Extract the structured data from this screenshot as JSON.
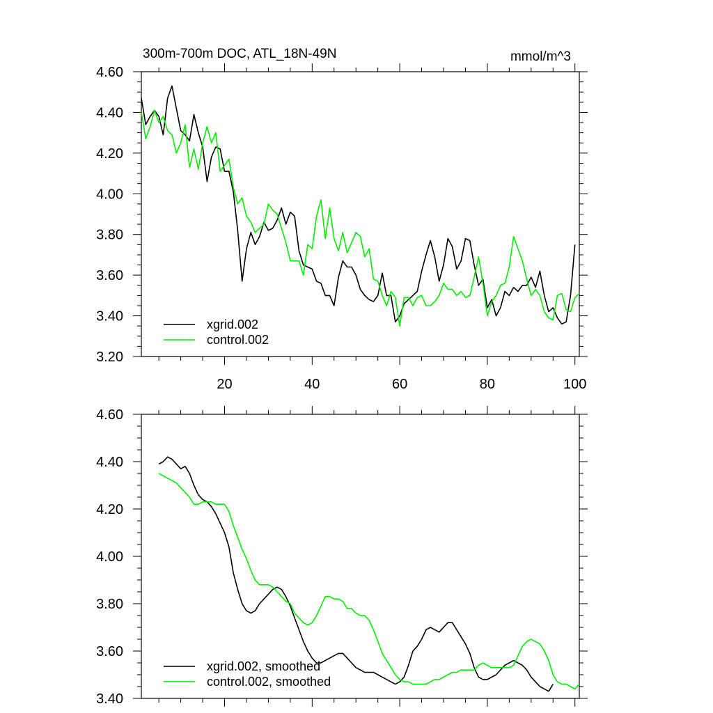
{
  "chart_data": [
    {
      "type": "line",
      "title": "300m-700m DOC, ATL_18N-49N",
      "units": "mmol/m^3",
      "xlim": [
        1,
        101
      ],
      "ylim": [
        3.2,
        4.6
      ],
      "xticks": [
        20,
        40,
        60,
        80,
        100
      ],
      "xtick_labels": [
        "20",
        "40",
        "60",
        "80",
        "100"
      ],
      "yticks": [
        3.2,
        3.4,
        3.6,
        3.8,
        4.0,
        4.2,
        4.4,
        4.6
      ],
      "ytick_labels": [
        "3.20",
        "3.40",
        "3.60",
        "3.80",
        "4.00",
        "4.20",
        "4.40",
        "4.60"
      ],
      "legend": "bottom-left",
      "series": [
        {
          "name": "xgrid.002",
          "color": "#000000",
          "x_start": 1,
          "values": [
            4.47,
            4.34,
            4.38,
            4.41,
            4.38,
            4.29,
            4.47,
            4.53,
            4.42,
            4.31,
            4.29,
            4.26,
            4.39,
            4.3,
            4.23,
            4.06,
            4.18,
            4.23,
            4.22,
            4.11,
            4.11,
            4.01,
            3.82,
            3.57,
            3.73,
            3.81,
            3.75,
            3.79,
            3.86,
            3.82,
            3.83,
            3.87,
            3.93,
            3.85,
            3.91,
            3.89,
            3.72,
            3.65,
            3.64,
            3.63,
            3.57,
            3.56,
            3.5,
            3.5,
            3.45,
            3.59,
            3.67,
            3.64,
            3.64,
            3.6,
            3.53,
            3.5,
            3.48,
            3.47,
            3.5,
            3.61,
            3.5,
            3.5,
            3.37,
            3.4,
            3.46,
            3.48,
            3.5,
            3.52,
            3.62,
            3.7,
            3.77,
            3.69,
            3.57,
            3.65,
            3.78,
            3.74,
            3.63,
            3.67,
            3.78,
            3.77,
            3.65,
            3.55,
            3.58,
            3.44,
            3.48,
            3.4,
            3.44,
            3.52,
            3.5,
            3.54,
            3.52,
            3.55,
            3.55,
            3.59,
            3.54,
            3.62,
            3.5,
            3.42,
            3.44,
            3.39,
            3.36,
            3.37,
            3.5,
            3.75
          ]
        },
        {
          "name": "control.002",
          "color": "#00ee00",
          "x_start": 1,
          "values": [
            4.4,
            4.27,
            4.33,
            4.41,
            4.35,
            4.38,
            4.31,
            4.29,
            4.2,
            4.25,
            4.34,
            4.13,
            4.22,
            4.12,
            4.25,
            4.33,
            4.25,
            4.3,
            4.11,
            4.14,
            4.17,
            4.03,
            3.95,
            3.98,
            3.89,
            3.86,
            3.81,
            3.83,
            3.85,
            3.95,
            3.92,
            3.9,
            3.83,
            3.76,
            3.67,
            3.67,
            3.67,
            3.6,
            3.75,
            3.73,
            3.89,
            3.97,
            3.78,
            3.93,
            3.78,
            3.72,
            3.81,
            3.71,
            3.76,
            3.81,
            3.79,
            3.69,
            3.73,
            3.58,
            3.57,
            3.5,
            3.45,
            3.52,
            3.49,
            3.35,
            3.49,
            3.49,
            3.45,
            3.49,
            3.5,
            3.45,
            3.45,
            3.47,
            3.5,
            3.56,
            3.53,
            3.53,
            3.5,
            3.52,
            3.49,
            3.5,
            3.59,
            3.69,
            3.56,
            3.4,
            3.47,
            3.5,
            3.55,
            3.56,
            3.64,
            3.79,
            3.73,
            3.67,
            3.58,
            3.5,
            3.53,
            3.5,
            3.42,
            3.39,
            3.38,
            3.5,
            3.51,
            3.43,
            3.42,
            3.49,
            3.51
          ]
        }
      ]
    },
    {
      "type": "line",
      "title": "",
      "xlim": [
        1,
        101
      ],
      "ylim": [
        3.4,
        4.6
      ],
      "xticks": [
        20,
        40,
        60,
        80,
        100
      ],
      "yticks": [
        3.4,
        3.6,
        3.8,
        4.0,
        4.2,
        4.4,
        4.6
      ],
      "ytick_labels": [
        "3.40",
        "3.60",
        "3.80",
        "4.00",
        "4.20",
        "4.40",
        "4.60"
      ],
      "legend": "bottom-left",
      "series": [
        {
          "name": "xgrid.002, smoothed",
          "color": "#000000",
          "x_start": 5,
          "values": [
            4.39,
            4.4,
            4.42,
            4.41,
            4.39,
            4.37,
            4.38,
            4.35,
            4.3,
            4.26,
            4.24,
            4.23,
            4.21,
            4.18,
            4.14,
            4.1,
            4.04,
            3.93,
            3.86,
            3.8,
            3.77,
            3.76,
            3.77,
            3.8,
            3.82,
            3.84,
            3.86,
            3.87,
            3.86,
            3.83,
            3.79,
            3.74,
            3.69,
            3.64,
            3.6,
            3.57,
            3.55,
            3.55,
            3.56,
            3.57,
            3.58,
            3.59,
            3.59,
            3.57,
            3.55,
            3.53,
            3.52,
            3.51,
            3.51,
            3.51,
            3.5,
            3.49,
            3.48,
            3.47,
            3.46,
            3.47,
            3.49,
            3.54,
            3.6,
            3.62,
            3.65,
            3.69,
            3.7,
            3.69,
            3.68,
            3.7,
            3.72,
            3.72,
            3.69,
            3.66,
            3.63,
            3.59,
            3.53,
            3.49,
            3.48,
            3.48,
            3.49,
            3.5,
            3.52,
            3.54,
            3.55,
            3.56,
            3.55,
            3.54,
            3.52,
            3.49,
            3.47,
            3.45,
            3.44,
            3.43,
            3.46
          ]
        },
        {
          "name": "control.002, smoothed",
          "color": "#00ee00",
          "x_start": 5,
          "values": [
            4.35,
            4.34,
            4.33,
            4.32,
            4.31,
            4.29,
            4.27,
            4.25,
            4.22,
            4.22,
            4.23,
            4.23,
            4.23,
            4.22,
            4.22,
            4.22,
            4.19,
            4.13,
            4.08,
            4.03,
            3.99,
            3.94,
            3.9,
            3.88,
            3.88,
            3.88,
            3.87,
            3.85,
            3.83,
            3.81,
            3.8,
            3.76,
            3.74,
            3.72,
            3.71,
            3.72,
            3.75,
            3.79,
            3.83,
            3.83,
            3.82,
            3.82,
            3.81,
            3.78,
            3.78,
            3.76,
            3.75,
            3.75,
            3.73,
            3.69,
            3.64,
            3.59,
            3.56,
            3.53,
            3.5,
            3.48,
            3.47,
            3.47,
            3.46,
            3.46,
            3.46,
            3.46,
            3.47,
            3.48,
            3.48,
            3.49,
            3.5,
            3.51,
            3.51,
            3.52,
            3.52,
            3.52,
            3.52,
            3.54,
            3.55,
            3.54,
            3.53,
            3.53,
            3.53,
            3.53,
            3.53,
            3.54,
            3.58,
            3.62,
            3.64,
            3.65,
            3.64,
            3.63,
            3.6,
            3.56,
            3.5,
            3.47,
            3.46,
            3.46,
            3.45,
            3.44,
            3.46
          ]
        }
      ]
    }
  ]
}
